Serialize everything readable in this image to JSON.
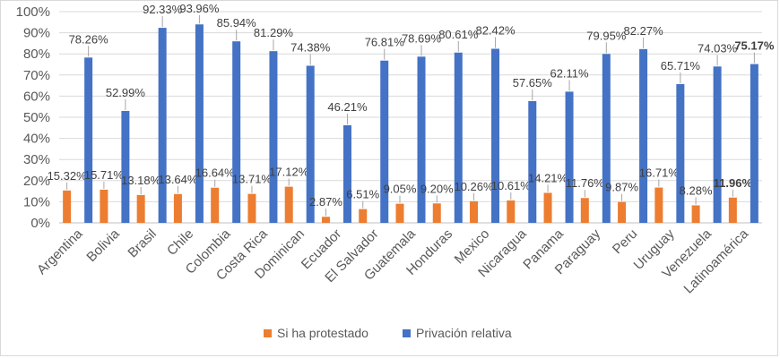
{
  "chart_data": {
    "type": "bar",
    "categories": [
      "Argentina",
      "Bolivia",
      "Brasil",
      "Chile",
      "Colombia",
      "Costa Rica",
      "Dominican",
      "Ecuador",
      "El Salvador",
      "Guatemala",
      "Honduras",
      "Mexico",
      "Nicaragua",
      "Panama",
      "Paraguay",
      "Peru",
      "Uruguay",
      "Venezuela",
      "Latinoamérica"
    ],
    "series": [
      {
        "name": "Si ha protestado",
        "color": "#ED7D31",
        "values": [
          15.32,
          15.71,
          13.18,
          13.64,
          16.64,
          13.71,
          17.12,
          2.87,
          6.51,
          9.05,
          9.2,
          10.26,
          10.61,
          14.21,
          11.76,
          9.87,
          16.71,
          8.28,
          11.96
        ],
        "labels": [
          "15.32%",
          "15.71%",
          "13.18%",
          "13.64%",
          "16.64%",
          "13.71%",
          "17.12%",
          "2.87%",
          "6.51%",
          "9.05%",
          "9.20%",
          "10.26%",
          "10.61%",
          "14.21%",
          "11.76%",
          "9.87%",
          "16.71%",
          "8.28%",
          "11.96%"
        ]
      },
      {
        "name": "Privación relativa",
        "color": "#4472C4",
        "values": [
          78.26,
          52.99,
          92.33,
          93.96,
          85.94,
          81.29,
          74.38,
          46.21,
          76.81,
          78.69,
          80.61,
          82.42,
          57.65,
          62.11,
          79.95,
          82.27,
          65.71,
          74.03,
          75.17
        ],
        "labels": [
          "78.26%",
          "52.99%",
          "92.33%",
          "93.96%",
          "85.94%",
          "81.29%",
          "74.38%",
          "46.21%",
          "76.81%",
          "78.69%",
          "80.61%",
          "82.42%",
          "57.65%",
          "62.11%",
          "79.95%",
          "82.27%",
          "65.71%",
          "74.03%",
          "75.17%"
        ]
      }
    ],
    "y_ticks": [
      "0%",
      "10%",
      "20%",
      "30%",
      "40%",
      "50%",
      "60%",
      "70%",
      "80%",
      "90%",
      "100%"
    ],
    "ylim": [
      0,
      100
    ],
    "bold_category": "Latinoamérica",
    "gridlines": true,
    "legend_position": "bottom"
  }
}
